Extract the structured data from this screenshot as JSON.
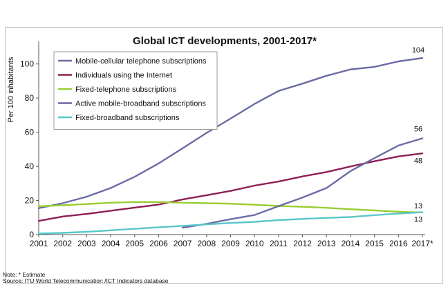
{
  "chart_data": {
    "type": "line",
    "title": "Global ICT developments, 2001-2017*",
    "ylabel": "Per 100 inhabitants",
    "xlabel": "",
    "ylim": [
      0,
      110
    ],
    "yticks": [
      0,
      20,
      40,
      60,
      80,
      100
    ],
    "x": [
      "2001",
      "2002",
      "2003",
      "2004",
      "2005",
      "2006",
      "2007",
      "2008",
      "2009",
      "2010",
      "2011",
      "2012",
      "2013",
      "2014",
      "2015",
      "2016",
      "2017*"
    ],
    "grid": false,
    "legend_position": "top-left",
    "series": [
      {
        "name": "Mobile-cellular telephone subscriptions",
        "color": "#6b6ba6",
        "values": [
          15.5,
          18.4,
          22.2,
          27.3,
          33.9,
          41.7,
          50.6,
          59.6,
          68.0,
          76.6,
          84.2,
          88.5,
          93.1,
          96.8,
          98.3,
          101.5,
          103.5
        ]
      },
      {
        "name": "Individuals using the Internet",
        "color": "#8e1f55",
        "values": [
          8.0,
          10.6,
          12.1,
          14.0,
          15.8,
          17.6,
          20.6,
          23.1,
          25.6,
          28.7,
          31.1,
          34.1,
          36.7,
          39.9,
          43.0,
          45.8,
          47.6
        ]
      },
      {
        "name": "Fixed-telephone subscriptions",
        "color": "#9acd32",
        "values": [
          16.6,
          17.2,
          17.9,
          18.7,
          19.1,
          19.1,
          18.7,
          18.4,
          18.1,
          17.5,
          16.8,
          16.3,
          15.7,
          14.9,
          14.2,
          13.4,
          13.0
        ]
      },
      {
        "name": "Active mobile-broadband subscriptions",
        "color": "#6b6ba6",
        "values": [
          null,
          null,
          null,
          null,
          null,
          null,
          4.0,
          6.3,
          9.0,
          11.5,
          16.7,
          21.7,
          27.3,
          37.2,
          44.8,
          52.2,
          56.4
        ]
      },
      {
        "name": "Fixed-broadband subscriptions",
        "color": "#57c7c9",
        "values": [
          0.6,
          1.0,
          1.6,
          2.5,
          3.4,
          4.3,
          5.1,
          6.0,
          6.8,
          7.5,
          8.5,
          9.2,
          9.8,
          10.3,
          11.4,
          12.3,
          13.1
        ]
      }
    ],
    "end_labels": [
      {
        "series": 0,
        "text": "104"
      },
      {
        "series": 3,
        "text": "56"
      },
      {
        "series": 1,
        "text": "48"
      },
      {
        "series": 2,
        "text": "13"
      },
      {
        "series": 4,
        "text": "13"
      }
    ]
  },
  "notes": {
    "note": "Note: * Estimate",
    "source": "Source:  ITU World Telecommunication /ICT Indicators database"
  }
}
